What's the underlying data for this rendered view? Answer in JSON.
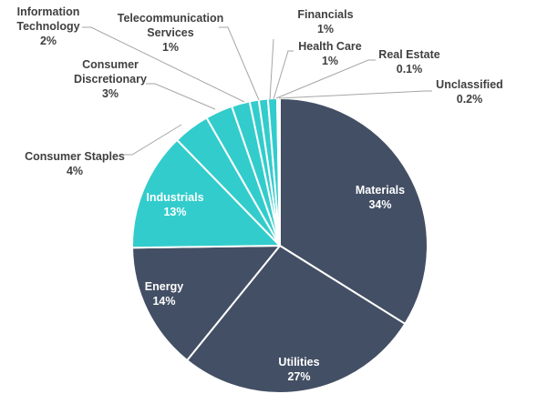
{
  "chart_data": {
    "type": "pie",
    "title": "",
    "slices": [
      {
        "name": "Materials",
        "value_label": "34%",
        "value": 34.0,
        "color": "#434f64"
      },
      {
        "name": "Utilities",
        "value_label": "27%",
        "value": 27.0,
        "color": "#434f64"
      },
      {
        "name": "Energy",
        "value_label": "14%",
        "value": 14.0,
        "color": "#434f64"
      },
      {
        "name": "Industrials",
        "value_label": "13%",
        "value": 13.0,
        "color": "#33cccc"
      },
      {
        "name": "Consumer Staples",
        "value_label": "4%",
        "value": 4.0,
        "color": "#33cccc"
      },
      {
        "name": "Consumer Discretionary",
        "value_label": "3%",
        "value": 3.0,
        "color": "#33cccc"
      },
      {
        "name": "Information Technology",
        "value_label": "2%",
        "value": 2.0,
        "color": "#33cccc"
      },
      {
        "name": "Telecommunication Services",
        "value_label": "1%",
        "value": 1.0,
        "color": "#33cccc"
      },
      {
        "name": "Financials",
        "value_label": "1%",
        "value": 1.0,
        "color": "#33cccc"
      },
      {
        "name": "Health Care",
        "value_label": "1%",
        "value": 1.0,
        "color": "#33cccc"
      },
      {
        "name": "Real Estate",
        "value_label": "0.1%",
        "value": 0.1,
        "color": "#33cccc"
      },
      {
        "name": "Unclassified",
        "value_label": "0.2%",
        "value": 0.2,
        "color": "#33cccc"
      }
    ],
    "legend": "none"
  }
}
